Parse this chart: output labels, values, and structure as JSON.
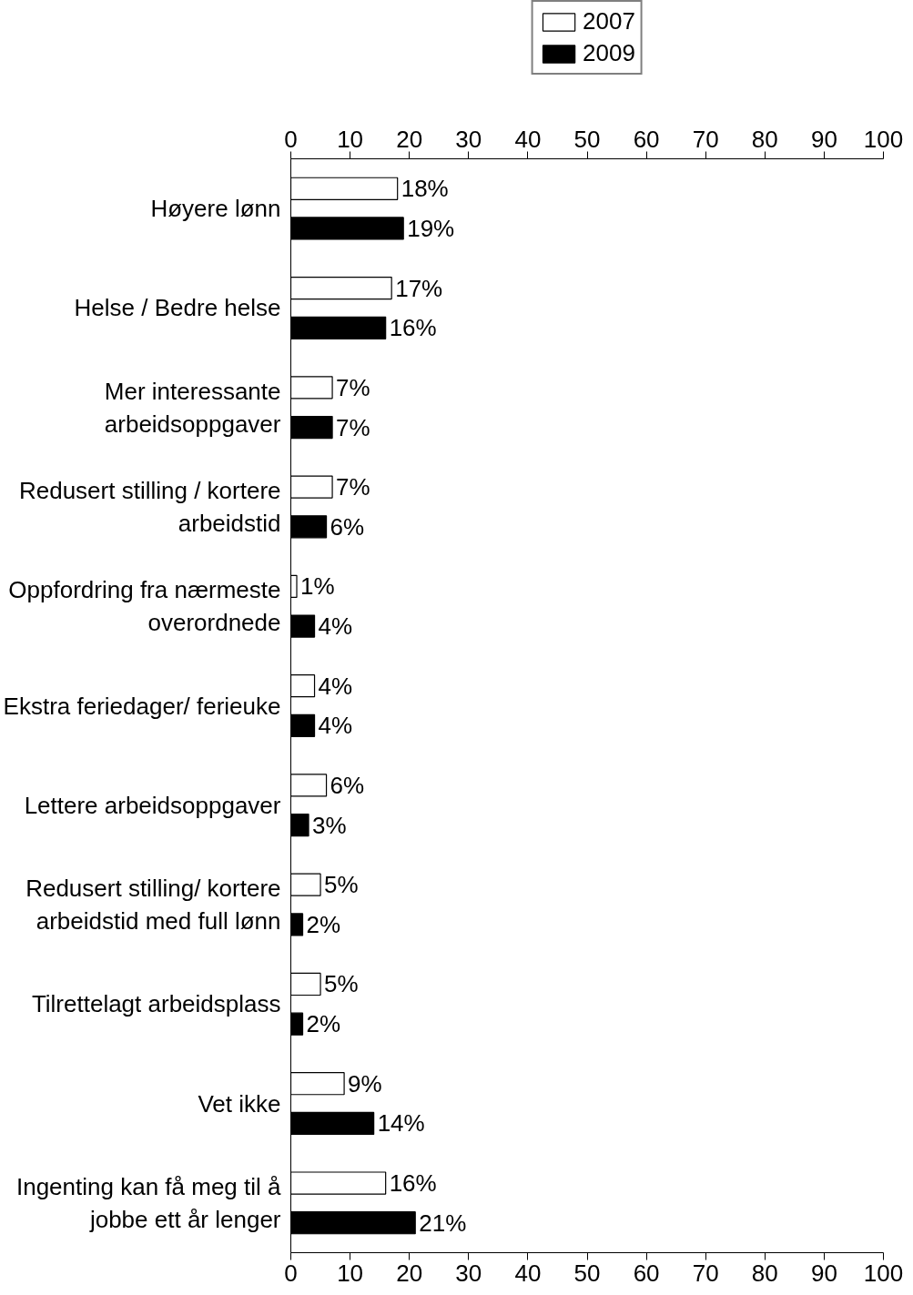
{
  "chart_data": {
    "type": "bar",
    "orientation": "horizontal",
    "categories": [
      "Høyere lønn",
      "Helse / Bedre helse",
      "Mer interessante arbeidsoppgaver",
      "Redusert stilling / kortere arbeidstid",
      "Oppfordring fra nærmeste overordnede",
      "Ekstra feriedager/ ferieuke",
      "Lettere arbeidsoppgaver",
      "Redusert stilling/ kortere arbeidstid med full lønn",
      "Tilrettelagt arbeidsplass",
      "Vet ikke",
      "Ingenting kan få meg til å jobbe ett år lenger"
    ],
    "series": [
      {
        "name": "2007",
        "color": "#ffffff",
        "values": [
          18,
          17,
          7,
          7,
          1,
          4,
          6,
          5,
          5,
          9,
          16
        ],
        "value_labels": [
          "18%",
          "17%",
          "7%",
          "7%",
          "1%",
          "4%",
          "6%",
          "5%",
          "5%",
          "9%",
          "16%"
        ]
      },
      {
        "name": "2009",
        "color": "#000000",
        "values": [
          19,
          16,
          7,
          6,
          4,
          4,
          3,
          2,
          2,
          14,
          21
        ],
        "value_labels": [
          "19%",
          "16%",
          "7%",
          "6%",
          "4%",
          "4%",
          "3%",
          "2%",
          "2%",
          "14%",
          "21%"
        ]
      }
    ],
    "xlim": [
      0,
      100
    ],
    "xticks": [
      0,
      10,
      20,
      30,
      40,
      50,
      60,
      70,
      80,
      90,
      100
    ],
    "x2lim": [
      0,
      100
    ],
    "x2ticks": [
      0,
      10,
      20,
      30,
      40,
      50,
      60,
      70,
      80,
      90,
      100
    ],
    "grid": false,
    "legend": "top"
  }
}
